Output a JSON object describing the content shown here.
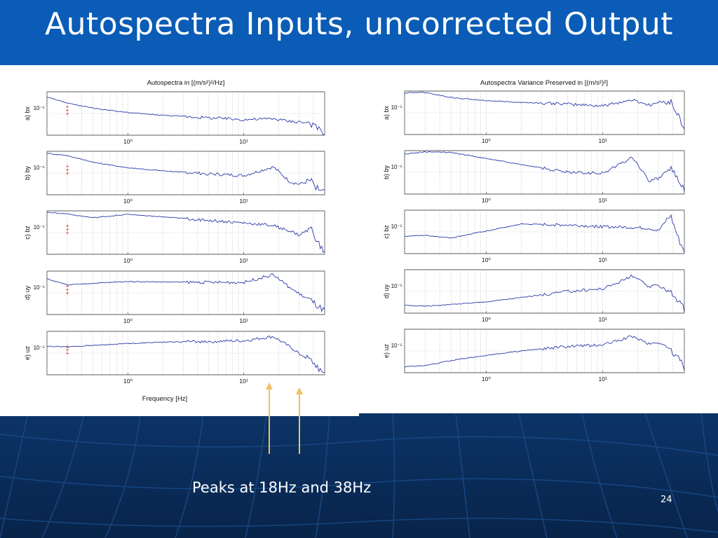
{
  "slide": {
    "title": "Autospectra Inputs, uncorrected Output",
    "caption": "Peaks at 18Hz and 38Hz",
    "page_number": "24"
  },
  "colors": {
    "title_bar": "#0a5cb6",
    "background": "#0b2a55",
    "trace": "#2b3aa8",
    "marker": "#cc2222",
    "arrow": "#f0c060"
  },
  "chart_data": [
    {
      "type": "line",
      "title": "Autospectra in [(m/s²)²/Hz]",
      "xlabel": "Frequency [Hz]",
      "x_scale": "log",
      "x_ticks": [
        "10⁰",
        "10¹"
      ],
      "y_scale": "log",
      "grid": true,
      "subplots": [
        {
          "label": "a) bx",
          "y_tick": "10⁻⁵",
          "x": [
            0.2,
            0.3,
            0.5,
            1,
            2,
            5,
            10,
            18,
            25,
            30,
            38,
            45,
            50
          ],
          "y": [
            0.88,
            0.74,
            0.62,
            0.52,
            0.46,
            0.4,
            0.36,
            0.38,
            0.32,
            0.31,
            0.27,
            0.12,
            0.02
          ]
        },
        {
          "label": "b) by",
          "y_tick": "10⁻⁵",
          "x": [
            0.2,
            0.3,
            0.5,
            1,
            2,
            5,
            10,
            18,
            25,
            30,
            38,
            45,
            50
          ],
          "y": [
            0.95,
            0.9,
            0.75,
            0.62,
            0.55,
            0.48,
            0.44,
            0.64,
            0.3,
            0.24,
            0.32,
            0.1,
            0.05
          ]
        },
        {
          "label": "c) bz",
          "y_tick": "10⁻⁵",
          "x": [
            0.2,
            0.3,
            0.5,
            1,
            2,
            5,
            10,
            18,
            25,
            30,
            38,
            45,
            50
          ],
          "y": [
            0.97,
            0.93,
            0.84,
            0.92,
            0.86,
            0.78,
            0.72,
            0.66,
            0.54,
            0.44,
            0.6,
            0.2,
            0.02
          ]
        },
        {
          "label": "d) uy",
          "y_tick": "10⁻⁵",
          "x": [
            0.2,
            0.3,
            0.5,
            1,
            2,
            5,
            10,
            18,
            25,
            30,
            38,
            45,
            50
          ],
          "y": [
            0.82,
            0.68,
            0.72,
            0.76,
            0.75,
            0.74,
            0.74,
            0.92,
            0.62,
            0.48,
            0.32,
            0.16,
            0.08
          ]
        },
        {
          "label": "e) uz",
          "y_tick": "10⁻⁵",
          "x": [
            0.2,
            0.3,
            0.5,
            1,
            2,
            5,
            10,
            18,
            25,
            30,
            38,
            45,
            50
          ],
          "y": [
            0.66,
            0.64,
            0.68,
            0.72,
            0.75,
            0.77,
            0.78,
            0.88,
            0.64,
            0.5,
            0.32,
            0.14,
            0.04
          ]
        }
      ]
    },
    {
      "type": "line",
      "title": "Autospectra Variance Preserved in [(m/s²)²]",
      "xlabel": "",
      "x_scale": "log",
      "x_ticks": [
        "10⁰",
        "10¹"
      ],
      "y_scale": "log",
      "grid": true,
      "subplots": [
        {
          "label": "a) bx",
          "y_tick": "10⁻⁵",
          "x": [
            0.2,
            0.3,
            0.5,
            1,
            2,
            5,
            10,
            18,
            25,
            30,
            38,
            45,
            50
          ],
          "y": [
            0.96,
            0.97,
            0.85,
            0.78,
            0.74,
            0.7,
            0.66,
            0.8,
            0.68,
            0.74,
            0.76,
            0.4,
            0.12
          ]
        },
        {
          "label": "b) by",
          "y_tick": "10⁻⁵",
          "x": [
            0.2,
            0.3,
            0.5,
            1,
            2,
            5,
            10,
            18,
            25,
            30,
            38,
            45,
            50
          ],
          "y": [
            0.92,
            0.97,
            0.96,
            0.82,
            0.68,
            0.5,
            0.48,
            0.85,
            0.3,
            0.36,
            0.6,
            0.28,
            0.08
          ]
        },
        {
          "label": "c) bz",
          "y_tick": "10⁻⁵",
          "x": [
            0.2,
            0.3,
            0.5,
            1,
            2,
            5,
            10,
            18,
            25,
            30,
            38,
            45,
            50
          ],
          "y": [
            0.4,
            0.42,
            0.36,
            0.52,
            0.68,
            0.66,
            0.62,
            0.6,
            0.58,
            0.52,
            0.88,
            0.3,
            0.06
          ]
        },
        {
          "label": "d) uy",
          "y_tick": "10⁻⁵",
          "x": [
            0.2,
            0.3,
            0.5,
            1,
            2,
            5,
            10,
            18,
            25,
            30,
            38,
            45,
            50
          ],
          "y": [
            0.18,
            0.16,
            0.2,
            0.26,
            0.36,
            0.5,
            0.56,
            0.86,
            0.6,
            0.64,
            0.5,
            0.26,
            0.08
          ]
        },
        {
          "label": "e) uz",
          "y_tick": "10⁻⁵",
          "x": [
            0.2,
            0.3,
            0.5,
            1,
            2,
            5,
            10,
            18,
            25,
            30,
            38,
            45,
            50
          ],
          "y": [
            0.14,
            0.16,
            0.28,
            0.4,
            0.5,
            0.6,
            0.64,
            0.84,
            0.66,
            0.7,
            0.54,
            0.3,
            0.12
          ]
        }
      ]
    }
  ]
}
